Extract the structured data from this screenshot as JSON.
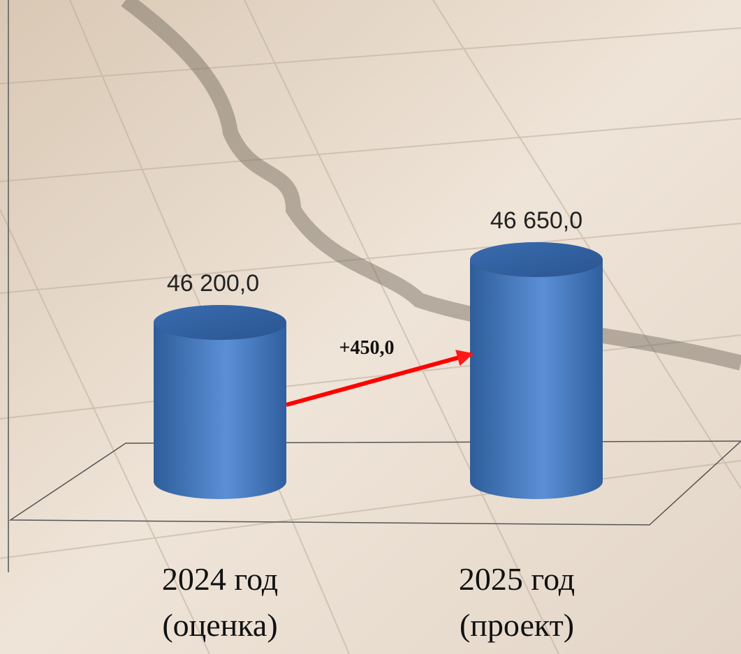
{
  "chart_data": {
    "type": "bar3d",
    "categories": [
      "2024 год\n(оценка)",
      "2025 год\n(проект)"
    ],
    "values": [
      46200.0,
      46650.0
    ],
    "value_labels": [
      "46 200,0",
      "46 650,0"
    ],
    "color": "#4f81bd",
    "annotation": "+450,0",
    "annotation_color": "#ff0000"
  }
}
